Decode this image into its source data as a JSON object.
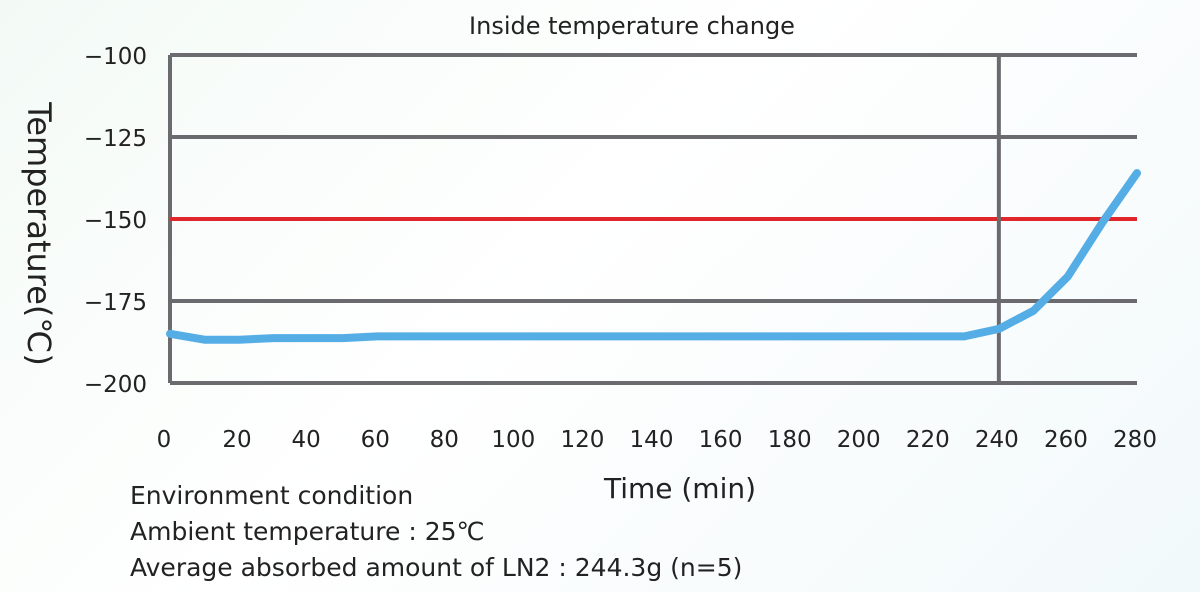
{
  "chart_data": {
    "type": "line",
    "title": "Inside temperature change",
    "xlabel": "Time (min)",
    "ylabel": "Temperature(℃)",
    "xlim": [
      0,
      280
    ],
    "ylim": [
      -200,
      -100
    ],
    "x_ticks": [
      "0",
      "20",
      "40",
      "60",
      "80",
      "100",
      "120",
      "140",
      "160",
      "180",
      "200",
      "220",
      "240",
      "260",
      "280"
    ],
    "y_ticks": [
      "−100",
      "−125",
      "−150",
      "−175",
      "−200"
    ],
    "grid": true,
    "reference_lines": [
      {
        "axis": "y",
        "value": -150,
        "color": "#e0262a"
      },
      {
        "axis": "x",
        "value": 240,
        "color": "#6b6b6f"
      }
    ],
    "series": [
      {
        "color": "#55ade6",
        "x": [
          0,
          10,
          20,
          30,
          40,
          50,
          60,
          70,
          80,
          90,
          100,
          110,
          120,
          130,
          140,
          150,
          160,
          170,
          180,
          190,
          200,
          210,
          220,
          230,
          240,
          250,
          260,
          270,
          280
        ],
        "y": [
          -185,
          -186.8,
          -186.8,
          -186.3,
          -186.3,
          -186.3,
          -185.8,
          -185.8,
          -185.8,
          -185.8,
          -185.8,
          -185.8,
          -185.8,
          -185.8,
          -185.8,
          -185.8,
          -185.8,
          -185.8,
          -185.8,
          -185.8,
          -185.8,
          -185.8,
          -185.8,
          -185.8,
          -183.5,
          -178,
          -167.5,
          -151,
          -136
        ]
      }
    ],
    "colors": {
      "grid": "#6b6b6f",
      "reference": "#e0262a",
      "series": "#55ade6"
    }
  },
  "notes": {
    "line1": "Environment condition",
    "line2": "Ambient temperature : 25℃",
    "line3": "Average absorbed amount of LN2 : 244.3g (n=5)"
  }
}
